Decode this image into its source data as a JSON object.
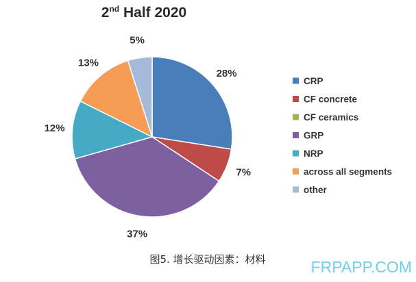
{
  "chart_data": {
    "type": "pie",
    "title_main": "2",
    "title_sup": "nd",
    "title_rest": " Half 2020",
    "slices": [
      {
        "name": "CRP",
        "value": 28,
        "label": "28%",
        "color": "#4a7ebb"
      },
      {
        "name": "CF concrete",
        "value": 7,
        "label": "7%",
        "color": "#be4b48"
      },
      {
        "name": "CF ceramics",
        "value": 0,
        "label": "",
        "color": "#98b954"
      },
      {
        "name": "GRP",
        "value": 37,
        "label": "37%",
        "color": "#7d60a0"
      },
      {
        "name": "NRP",
        "value": 12,
        "label": "12%",
        "color": "#46aac5"
      },
      {
        "name": "across all segments",
        "value": 13,
        "label": "13%",
        "color": "#f59d56"
      },
      {
        "name": "other",
        "value": 5,
        "label": "5%",
        "color": "#a5b9da"
      }
    ],
    "legend_position": "right"
  },
  "caption": "图5. 增长驱动因素：材料",
  "watermark": "FRPAPP.COM"
}
